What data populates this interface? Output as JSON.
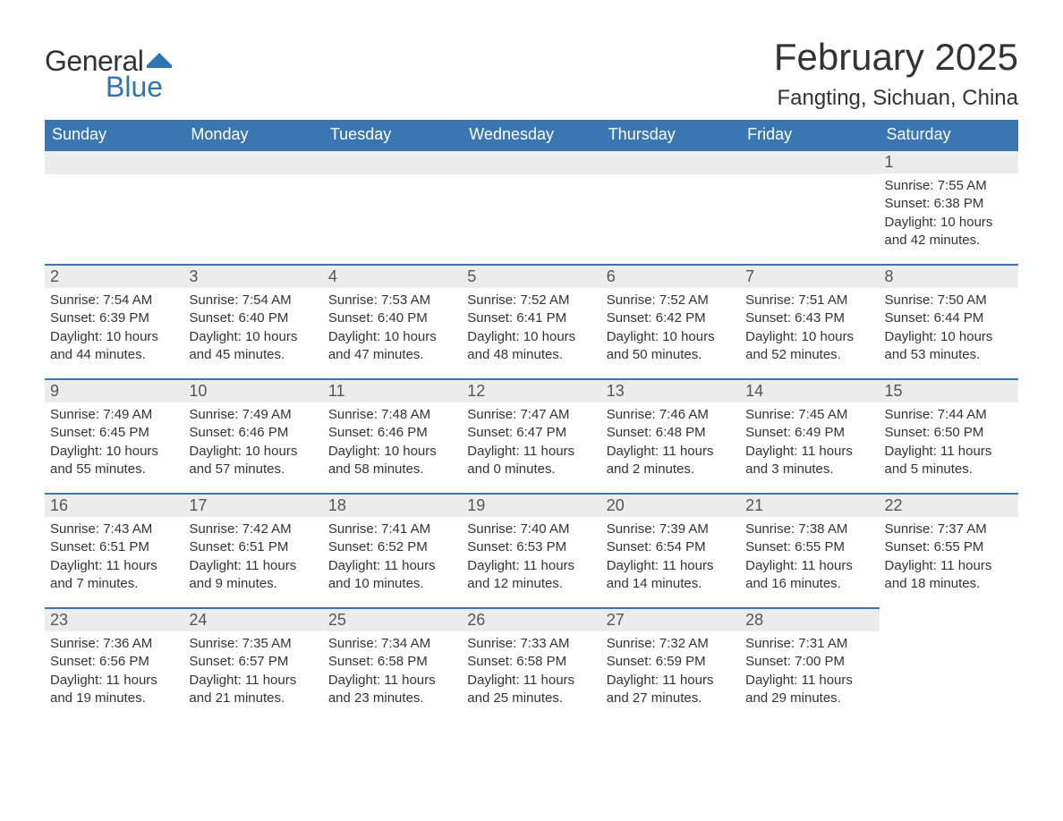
{
  "brand": {
    "word1": "General",
    "word2": "Blue",
    "flag_color": "#2e75b6"
  },
  "title": "February 2025",
  "location": "Fangting, Sichuan, China",
  "colors": {
    "header_bg": "#3a76b1",
    "header_text": "#ffffff",
    "day_header_bg": "#ececec",
    "day_border": "#3a76b1",
    "text": "#333333"
  },
  "weekdays": [
    "Sunday",
    "Monday",
    "Tuesday",
    "Wednesday",
    "Thursday",
    "Friday",
    "Saturday"
  ],
  "weeks": [
    [
      null,
      null,
      null,
      null,
      null,
      null,
      {
        "n": "1",
        "sunrise": "Sunrise: 7:55 AM",
        "sunset": "Sunset: 6:38 PM",
        "daylight": "Daylight: 10 hours and 42 minutes."
      }
    ],
    [
      {
        "n": "2",
        "sunrise": "Sunrise: 7:54 AM",
        "sunset": "Sunset: 6:39 PM",
        "daylight": "Daylight: 10 hours and 44 minutes."
      },
      {
        "n": "3",
        "sunrise": "Sunrise: 7:54 AM",
        "sunset": "Sunset: 6:40 PM",
        "daylight": "Daylight: 10 hours and 45 minutes."
      },
      {
        "n": "4",
        "sunrise": "Sunrise: 7:53 AM",
        "sunset": "Sunset: 6:40 PM",
        "daylight": "Daylight: 10 hours and 47 minutes."
      },
      {
        "n": "5",
        "sunrise": "Sunrise: 7:52 AM",
        "sunset": "Sunset: 6:41 PM",
        "daylight": "Daylight: 10 hours and 48 minutes."
      },
      {
        "n": "6",
        "sunrise": "Sunrise: 7:52 AM",
        "sunset": "Sunset: 6:42 PM",
        "daylight": "Daylight: 10 hours and 50 minutes."
      },
      {
        "n": "7",
        "sunrise": "Sunrise: 7:51 AM",
        "sunset": "Sunset: 6:43 PM",
        "daylight": "Daylight: 10 hours and 52 minutes."
      },
      {
        "n": "8",
        "sunrise": "Sunrise: 7:50 AM",
        "sunset": "Sunset: 6:44 PM",
        "daylight": "Daylight: 10 hours and 53 minutes."
      }
    ],
    [
      {
        "n": "9",
        "sunrise": "Sunrise: 7:49 AM",
        "sunset": "Sunset: 6:45 PM",
        "daylight": "Daylight: 10 hours and 55 minutes."
      },
      {
        "n": "10",
        "sunrise": "Sunrise: 7:49 AM",
        "sunset": "Sunset: 6:46 PM",
        "daylight": "Daylight: 10 hours and 57 minutes."
      },
      {
        "n": "11",
        "sunrise": "Sunrise: 7:48 AM",
        "sunset": "Sunset: 6:46 PM",
        "daylight": "Daylight: 10 hours and 58 minutes."
      },
      {
        "n": "12",
        "sunrise": "Sunrise: 7:47 AM",
        "sunset": "Sunset: 6:47 PM",
        "daylight": "Daylight: 11 hours and 0 minutes."
      },
      {
        "n": "13",
        "sunrise": "Sunrise: 7:46 AM",
        "sunset": "Sunset: 6:48 PM",
        "daylight": "Daylight: 11 hours and 2 minutes."
      },
      {
        "n": "14",
        "sunrise": "Sunrise: 7:45 AM",
        "sunset": "Sunset: 6:49 PM",
        "daylight": "Daylight: 11 hours and 3 minutes."
      },
      {
        "n": "15",
        "sunrise": "Sunrise: 7:44 AM",
        "sunset": "Sunset: 6:50 PM",
        "daylight": "Daylight: 11 hours and 5 minutes."
      }
    ],
    [
      {
        "n": "16",
        "sunrise": "Sunrise: 7:43 AM",
        "sunset": "Sunset: 6:51 PM",
        "daylight": "Daylight: 11 hours and 7 minutes."
      },
      {
        "n": "17",
        "sunrise": "Sunrise: 7:42 AM",
        "sunset": "Sunset: 6:51 PM",
        "daylight": "Daylight: 11 hours and 9 minutes."
      },
      {
        "n": "18",
        "sunrise": "Sunrise: 7:41 AM",
        "sunset": "Sunset: 6:52 PM",
        "daylight": "Daylight: 11 hours and 10 minutes."
      },
      {
        "n": "19",
        "sunrise": "Sunrise: 7:40 AM",
        "sunset": "Sunset: 6:53 PM",
        "daylight": "Daylight: 11 hours and 12 minutes."
      },
      {
        "n": "20",
        "sunrise": "Sunrise: 7:39 AM",
        "sunset": "Sunset: 6:54 PM",
        "daylight": "Daylight: 11 hours and 14 minutes."
      },
      {
        "n": "21",
        "sunrise": "Sunrise: 7:38 AM",
        "sunset": "Sunset: 6:55 PM",
        "daylight": "Daylight: 11 hours and 16 minutes."
      },
      {
        "n": "22",
        "sunrise": "Sunrise: 7:37 AM",
        "sunset": "Sunset: 6:55 PM",
        "daylight": "Daylight: 11 hours and 18 minutes."
      }
    ],
    [
      {
        "n": "23",
        "sunrise": "Sunrise: 7:36 AM",
        "sunset": "Sunset: 6:56 PM",
        "daylight": "Daylight: 11 hours and 19 minutes."
      },
      {
        "n": "24",
        "sunrise": "Sunrise: 7:35 AM",
        "sunset": "Sunset: 6:57 PM",
        "daylight": "Daylight: 11 hours and 21 minutes."
      },
      {
        "n": "25",
        "sunrise": "Sunrise: 7:34 AM",
        "sunset": "Sunset: 6:58 PM",
        "daylight": "Daylight: 11 hours and 23 minutes."
      },
      {
        "n": "26",
        "sunrise": "Sunrise: 7:33 AM",
        "sunset": "Sunset: 6:58 PM",
        "daylight": "Daylight: 11 hours and 25 minutes."
      },
      {
        "n": "27",
        "sunrise": "Sunrise: 7:32 AM",
        "sunset": "Sunset: 6:59 PM",
        "daylight": "Daylight: 11 hours and 27 minutes."
      },
      {
        "n": "28",
        "sunrise": "Sunrise: 7:31 AM",
        "sunset": "Sunset: 7:00 PM",
        "daylight": "Daylight: 11 hours and 29 minutes."
      },
      null
    ]
  ]
}
